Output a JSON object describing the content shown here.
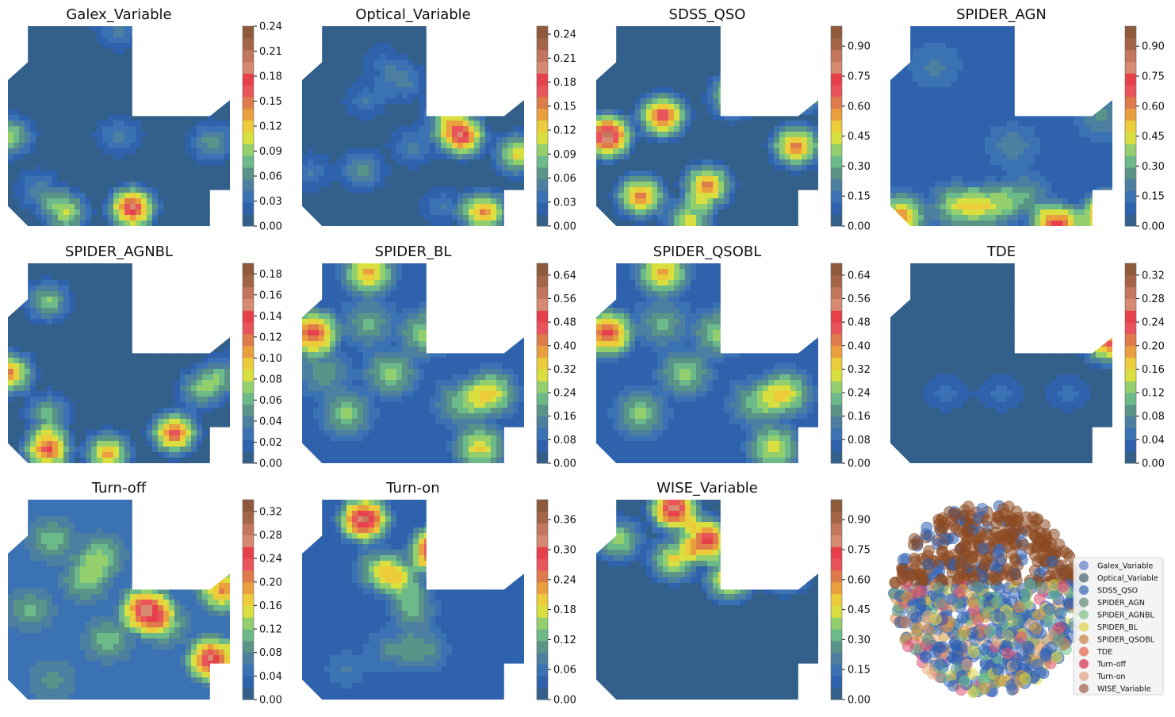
{
  "colors": {
    "palette": [
      "#335f8b",
      "#2f62ad",
      "#3a72b3",
      "#4d7fa0",
      "#5a9488",
      "#6cb98a",
      "#94cf6d",
      "#d9df3f",
      "#eccc3a",
      "#ea9f3e",
      "#df7b4a",
      "#e9545a",
      "#e8404a",
      "#d78a70",
      "#c2765b",
      "#a46547",
      "#8f5a3c"
    ],
    "background": "#ffffff",
    "legend_bg": "#f3f3f3"
  },
  "chart_data": [
    {
      "type": "heatmap",
      "title": "Galex_Variable",
      "colorbar_ticks": [
        "0.00",
        "0.03",
        "0.06",
        "0.09",
        "0.12",
        "0.15",
        "0.18",
        "0.21",
        "0.24"
      ],
      "vmax": 0.24,
      "peaks": [
        [
          0.5,
          0.02,
          0.06
        ],
        [
          0.5,
          0.55,
          0.06
        ],
        [
          0.01,
          0.55,
          0.11
        ],
        [
          0.14,
          0.82,
          0.06
        ],
        [
          0.26,
          0.93,
          0.12
        ],
        [
          0.56,
          0.91,
          0.21
        ],
        [
          0.92,
          0.58,
          0.08
        ]
      ]
    },
    {
      "type": "heatmap",
      "title": "Optical_Variable",
      "colorbar_ticks": [
        "0.00",
        "0.03",
        "0.06",
        "0.09",
        "0.12",
        "0.15",
        "0.18",
        "0.21",
        "0.24"
      ],
      "vmax": 0.25,
      "peaks": [
        [
          0.36,
          0.18,
          0.04
        ],
        [
          0.29,
          0.37,
          0.05
        ],
        [
          0.46,
          0.28,
          0.06
        ],
        [
          0.72,
          0.55,
          0.21
        ],
        [
          0.27,
          0.72,
          0.08
        ],
        [
          0.64,
          0.45,
          0.08
        ],
        [
          0.97,
          0.64,
          0.14
        ],
        [
          0.63,
          0.9,
          0.05
        ],
        [
          0.82,
          0.93,
          0.17
        ],
        [
          0.04,
          0.73,
          0.05
        ],
        [
          0.5,
          0.6,
          0.06
        ]
      ]
    },
    {
      "type": "heatmap",
      "title": "SDSS_QSO",
      "colorbar_ticks": [
        "0.00",
        "0.15",
        "0.30",
        "0.45",
        "0.60",
        "0.75",
        "0.90"
      ],
      "vmax": 1.0,
      "peaks": [
        [
          0.05,
          0.55,
          0.98
        ],
        [
          0.3,
          0.45,
          0.8
        ],
        [
          0.5,
          0.8,
          0.7
        ],
        [
          0.9,
          0.6,
          0.7
        ],
        [
          0.2,
          0.85,
          0.7
        ],
        [
          0.62,
          0.35,
          0.55
        ],
        [
          0.95,
          0.32,
          0.45
        ],
        [
          0.42,
          0.97,
          0.5
        ]
      ],
      "base": 0.02
    },
    {
      "type": "heatmap",
      "title": "SPIDER_AGN",
      "colorbar_ticks": [
        "0.00",
        "0.15",
        "0.30",
        "0.45",
        "0.60",
        "0.75",
        "0.90"
      ],
      "vmax": 1.0,
      "peaks": [
        [
          0.05,
          0.95,
          0.55
        ],
        [
          0.3,
          0.9,
          0.4
        ],
        [
          0.45,
          0.9,
          0.4
        ],
        [
          0.75,
          1.0,
          0.75
        ],
        [
          0.98,
          0.95,
          0.8
        ],
        [
          0.95,
          0.45,
          0.2
        ],
        [
          0.6,
          0.85,
          0.25
        ],
        [
          0.2,
          0.2,
          0.12
        ],
        [
          0.55,
          0.6,
          0.15
        ]
      ],
      "base": 0.1
    },
    {
      "type": "heatmap",
      "title": "SPIDER_AGNBL",
      "colorbar_ticks": [
        "0.00",
        "0.02",
        "0.04",
        "0.06",
        "0.08",
        "0.10",
        "0.12",
        "0.14",
        "0.16",
        "0.18"
      ],
      "vmax": 0.19,
      "peaks": [
        [
          0.18,
          0.19,
          0.08
        ],
        [
          0.01,
          0.55,
          0.13
        ],
        [
          0.18,
          0.75,
          0.07
        ],
        [
          0.18,
          0.93,
          0.15
        ],
        [
          0.45,
          0.95,
          0.12
        ],
        [
          0.75,
          0.85,
          0.15
        ],
        [
          0.87,
          0.63,
          0.08
        ],
        [
          0.98,
          0.55,
          0.06
        ]
      ]
    },
    {
      "type": "heatmap",
      "title": "SPIDER_BL",
      "colorbar_ticks": [
        "0.00",
        "0.08",
        "0.16",
        "0.24",
        "0.32",
        "0.40",
        "0.48",
        "0.56",
        "0.64"
      ],
      "vmax": 0.68,
      "peaks": [
        [
          0.3,
          0.05,
          0.35
        ],
        [
          0.05,
          0.35,
          0.48
        ],
        [
          0.85,
          0.65,
          0.3
        ],
        [
          0.8,
          0.92,
          0.3
        ],
        [
          0.55,
          0.35,
          0.22
        ],
        [
          0.4,
          0.55,
          0.22
        ],
        [
          0.2,
          0.75,
          0.2
        ],
        [
          0.72,
          0.7,
          0.18
        ],
        [
          0.3,
          0.3,
          0.16
        ],
        [
          0.1,
          0.55,
          0.14
        ]
      ],
      "base": 0.08
    },
    {
      "type": "heatmap",
      "title": "SPIDER_QSOBL",
      "colorbar_ticks": [
        "0.00",
        "0.08",
        "0.16",
        "0.24",
        "0.32",
        "0.40",
        "0.48",
        "0.56",
        "0.64"
      ],
      "vmax": 0.68,
      "peaks": [
        [
          0.3,
          0.05,
          0.35
        ],
        [
          0.05,
          0.35,
          0.48
        ],
        [
          0.85,
          0.65,
          0.3
        ],
        [
          0.8,
          0.92,
          0.28
        ],
        [
          0.55,
          0.35,
          0.22
        ],
        [
          0.4,
          0.55,
          0.22
        ],
        [
          0.2,
          0.75,
          0.2
        ],
        [
          0.72,
          0.7,
          0.18
        ],
        [
          0.3,
          0.3,
          0.16
        ]
      ],
      "base": 0.08
    },
    {
      "type": "heatmap",
      "title": "TDE",
      "colorbar_ticks": [
        "0.00",
        "0.04",
        "0.08",
        "0.12",
        "0.16",
        "0.20",
        "0.24",
        "0.28",
        "0.32"
      ],
      "vmax": 0.34,
      "peaks": [
        [
          0.98,
          0.4,
          0.25
        ],
        [
          0.25,
          0.65,
          0.06
        ],
        [
          0.5,
          0.65,
          0.06
        ],
        [
          0.8,
          0.65,
          0.06
        ]
      ]
    },
    {
      "type": "heatmap",
      "title": "Turn-off",
      "colorbar_ticks": [
        "0.00",
        "0.04",
        "0.08",
        "0.12",
        "0.16",
        "0.20",
        "0.24",
        "0.28",
        "0.32"
      ],
      "vmax": 0.34,
      "peaks": [
        [
          0.62,
          0.55,
          0.24
        ],
        [
          0.92,
          0.8,
          0.25
        ],
        [
          0.97,
          0.45,
          0.18
        ],
        [
          0.35,
          0.4,
          0.09
        ],
        [
          0.2,
          0.2,
          0.08
        ],
        [
          0.42,
          0.28,
          0.09
        ],
        [
          0.1,
          0.55,
          0.07
        ],
        [
          0.2,
          0.9,
          0.05
        ],
        [
          0.45,
          0.7,
          0.08
        ],
        [
          0.7,
          0.62,
          0.1
        ]
      ],
      "base": 0.05
    },
    {
      "type": "heatmap",
      "title": "Turn-on",
      "colorbar_ticks": [
        "0.00",
        "0.06",
        "0.12",
        "0.18",
        "0.24",
        "0.30",
        "0.36"
      ],
      "vmax": 0.4,
      "peaks": [
        [
          0.28,
          0.1,
          0.36
        ],
        [
          0.6,
          0.25,
          0.36
        ],
        [
          0.45,
          0.4,
          0.14
        ],
        [
          0.35,
          0.35,
          0.16
        ],
        [
          0.5,
          0.55,
          0.12
        ],
        [
          0.4,
          0.75,
          0.08
        ],
        [
          0.2,
          0.85,
          0.05
        ],
        [
          0.55,
          0.75,
          0.1
        ]
      ],
      "base": 0.03
    },
    {
      "type": "heatmap",
      "title": "WISE_Variable",
      "colorbar_ticks": [
        "0.00",
        "0.15",
        "0.30",
        "0.45",
        "0.60",
        "0.75",
        "0.90"
      ],
      "vmax": 1.0,
      "peaks": [
        [
          0.35,
          0.05,
          0.9
        ],
        [
          0.5,
          0.2,
          0.85
        ],
        [
          0.75,
          0.15,
          0.9
        ],
        [
          0.35,
          0.3,
          0.55
        ],
        [
          0.6,
          0.4,
          0.6
        ],
        [
          0.85,
          0.35,
          0.55
        ],
        [
          0.1,
          0.2,
          0.45
        ]
      ],
      "base": 0.03
    },
    {
      "type": "scatter",
      "legend": [
        "Galex_Variable",
        "Optical_Variable",
        "SDSS_QSO",
        "SPIDER_AGN",
        "SPIDER_AGNBL",
        "SPIDER_BL",
        "SPIDER_QSOBL",
        "TDE",
        "Turn-off",
        "Turn-on",
        "WISE_Variable"
      ],
      "legend_colors": [
        "#8a9fd6",
        "#788a96",
        "#6f8fc8",
        "#8ea79b",
        "#9ecfa6",
        "#e4dc78",
        "#d3a277",
        "#e98f7c",
        "#e1667a",
        "#e7bca6",
        "#b88a78"
      ],
      "point_colors": [
        "#2e5fb3",
        "#2e5fb3",
        "#3b6ac0",
        "#5f9a87",
        "#6cbf8a",
        "#d8d44b",
        "#d19a3d",
        "#e0894c",
        "#df4f73",
        "#e8b27e",
        "#8c4a22"
      ],
      "legend_placement": "right"
    }
  ]
}
